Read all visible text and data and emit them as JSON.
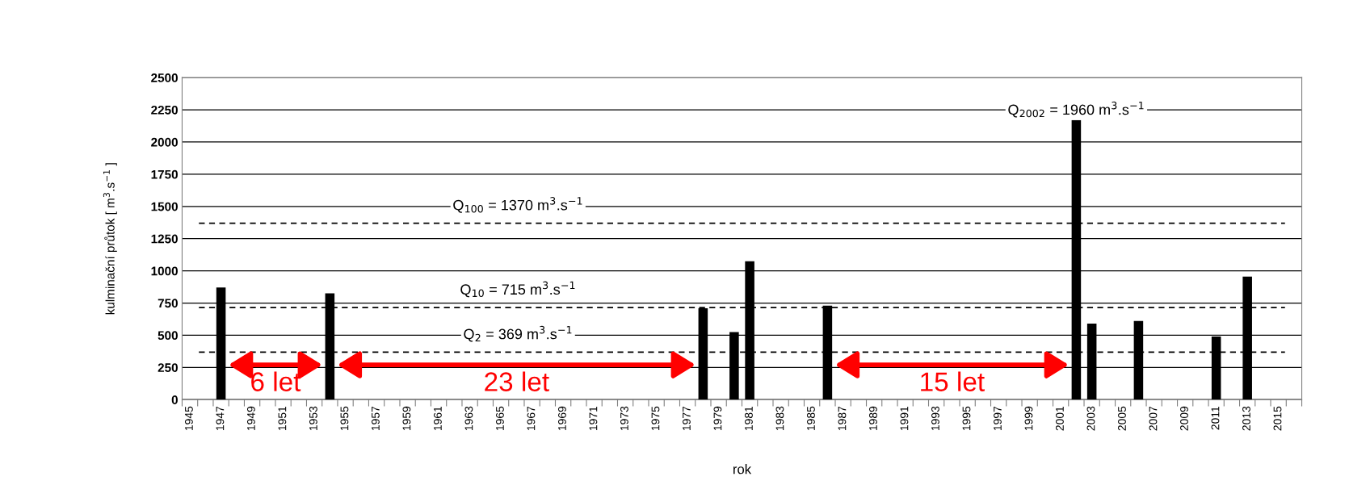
{
  "chart_data": {
    "type": "bar",
    "xlabel": "rok",
    "ylabel": "kulminační průtok [ m$^{3}$.s$^{−1}$ ]",
    "categories": [
      "1945",
      null,
      "1947",
      null,
      "1949",
      null,
      "1951",
      null,
      "1953",
      null,
      "1955",
      null,
      "1957",
      null,
      "1959",
      null,
      "1961",
      null,
      "1963",
      null,
      "1965",
      null,
      "1967",
      null,
      "1969",
      null,
      "1971",
      null,
      "1973",
      null,
      "1975",
      null,
      "1977",
      null,
      "1979",
      null,
      "1981",
      null,
      "1983",
      null,
      "1985",
      null,
      "1987",
      null,
      "1989",
      null,
      "1991",
      null,
      "1993",
      null,
      "1995",
      null,
      "1997",
      null,
      "1999",
      null,
      "2001",
      null,
      "2003",
      null,
      "2005",
      null,
      "2007",
      null,
      "2009",
      null,
      "2011",
      null,
      "2013",
      null,
      "2015",
      null
    ],
    "values": [
      null,
      null,
      870,
      null,
      null,
      null,
      null,
      null,
      null,
      825,
      null,
      null,
      null,
      null,
      null,
      null,
      null,
      null,
      null,
      null,
      null,
      null,
      null,
      null,
      null,
      null,
      null,
      null,
      null,
      null,
      null,
      null,
      null,
      710,
      null,
      525,
      1075,
      null,
      null,
      null,
      null,
      730,
      null,
      null,
      null,
      null,
      null,
      null,
      null,
      null,
      null,
      null,
      null,
      null,
      null,
      null,
      null,
      2170,
      590,
      null,
      null,
      610,
      null,
      null,
      null,
      null,
      490,
      null,
      955,
      null,
      null,
      null
    ],
    "color": "#000000",
    "ylim": [
      0,
      2500
    ],
    "yticks": [
      0,
      250,
      500,
      750,
      1000,
      1250,
      1500,
      1750,
      2000,
      2250,
      2500
    ],
    "grid": "y",
    "ref_lines": [
      {
        "axis": "y",
        "value": 1370,
        "color": "#000000",
        "line_style": "dashed",
        "label": "Q$_{100}$ = 1370 m$^{3}$.s$^{−1}$"
      },
      {
        "axis": "y",
        "value": 715,
        "color": "#000000",
        "line_style": "dashed",
        "label": "Q$_{10}$ = 715 m$^{3}$.s$^{−1}$"
      },
      {
        "axis": "y",
        "value": 369,
        "color": "#000000",
        "line_style": "dashed",
        "label": "Q$_{2}$ = 369 m$^{3}$.s$^{−1}$"
      }
    ],
    "annotations": [
      "Q$_{2002}$ = 1960 m$^{3}$.s$^{−1}$",
      "6 let",
      "23 let",
      "15 let"
    ]
  }
}
